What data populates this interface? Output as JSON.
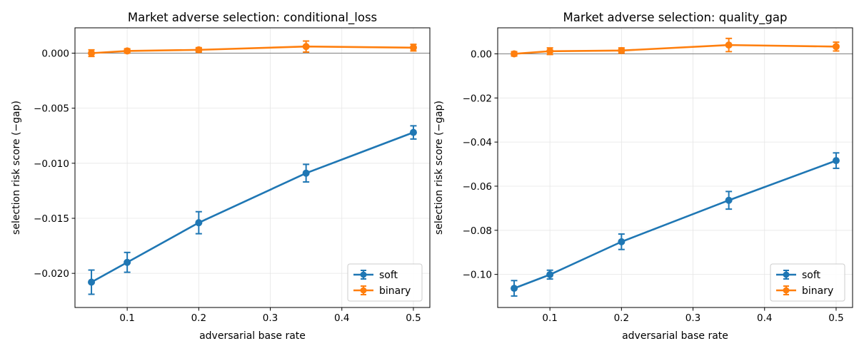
{
  "chart_data": [
    {
      "type": "line",
      "title": "Market adverse selection: conditional_loss",
      "xlabel": "adversarial base rate",
      "ylabel": "selection risk score (−gap)",
      "xlim": [
        0.027,
        0.523
      ],
      "ylim": [
        -0.0231,
        0.0023
      ],
      "x_ticks": [
        0.1,
        0.2,
        0.3,
        0.4,
        0.5
      ],
      "x_tick_labels": [
        "0.1",
        "0.2",
        "0.3",
        "0.4",
        "0.5"
      ],
      "y_ticks": [
        0.0,
        -0.005,
        -0.01,
        -0.015,
        -0.02
      ],
      "y_tick_labels": [
        "0.000",
        "−0.005",
        "−0.010",
        "−0.015",
        "−0.020"
      ],
      "x": [
        0.05,
        0.1,
        0.2,
        0.35,
        0.5
      ],
      "reference_line_y": 0,
      "grid": true,
      "legend_position": "lower-right",
      "series": [
        {
          "name": "soft",
          "color": "#1f77b4",
          "values": [
            -0.0208,
            -0.019,
            -0.0154,
            -0.0109,
            -0.0072
          ],
          "errors": [
            0.0011,
            0.0009,
            0.001,
            0.0008,
            0.0006
          ]
        },
        {
          "name": "binary",
          "color": "#ff7f0e",
          "values": [
            0.0,
            0.0002,
            0.0003,
            0.0006,
            0.0005
          ],
          "errors": [
            0.0003,
            0.0002,
            0.0002,
            0.0005,
            0.0003
          ]
        }
      ]
    },
    {
      "type": "line",
      "title": "Market adverse selection: quality_gap",
      "xlabel": "adversarial base rate",
      "ylabel": "selection risk score (−gap)",
      "xlim": [
        0.027,
        0.523
      ],
      "ylim": [
        -0.115,
        0.0118
      ],
      "x_ticks": [
        0.1,
        0.2,
        0.3,
        0.4,
        0.5
      ],
      "x_tick_labels": [
        "0.1",
        "0.2",
        "0.3",
        "0.4",
        "0.5"
      ],
      "y_ticks": [
        0.0,
        -0.02,
        -0.04,
        -0.06,
        -0.08,
        -0.1
      ],
      "y_tick_labels": [
        "0.00",
        "−0.02",
        "−0.04",
        "−0.06",
        "−0.08",
        "−0.10"
      ],
      "x": [
        0.05,
        0.1,
        0.2,
        0.35,
        0.5
      ],
      "reference_line_y": 0,
      "grid": true,
      "legend_position": "lower-right",
      "series": [
        {
          "name": "soft",
          "color": "#1f77b4",
          "values": [
            -0.1063,
            -0.1001,
            -0.0852,
            -0.0664,
            -0.0484
          ],
          "errors": [
            0.0035,
            0.002,
            0.0035,
            0.004,
            0.0035
          ]
        },
        {
          "name": "binary",
          "color": "#ff7f0e",
          "values": [
            0.0,
            0.0012,
            0.0015,
            0.004,
            0.0033
          ],
          "errors": [
            0.001,
            0.0015,
            0.0012,
            0.003,
            0.002
          ]
        }
      ]
    }
  ]
}
